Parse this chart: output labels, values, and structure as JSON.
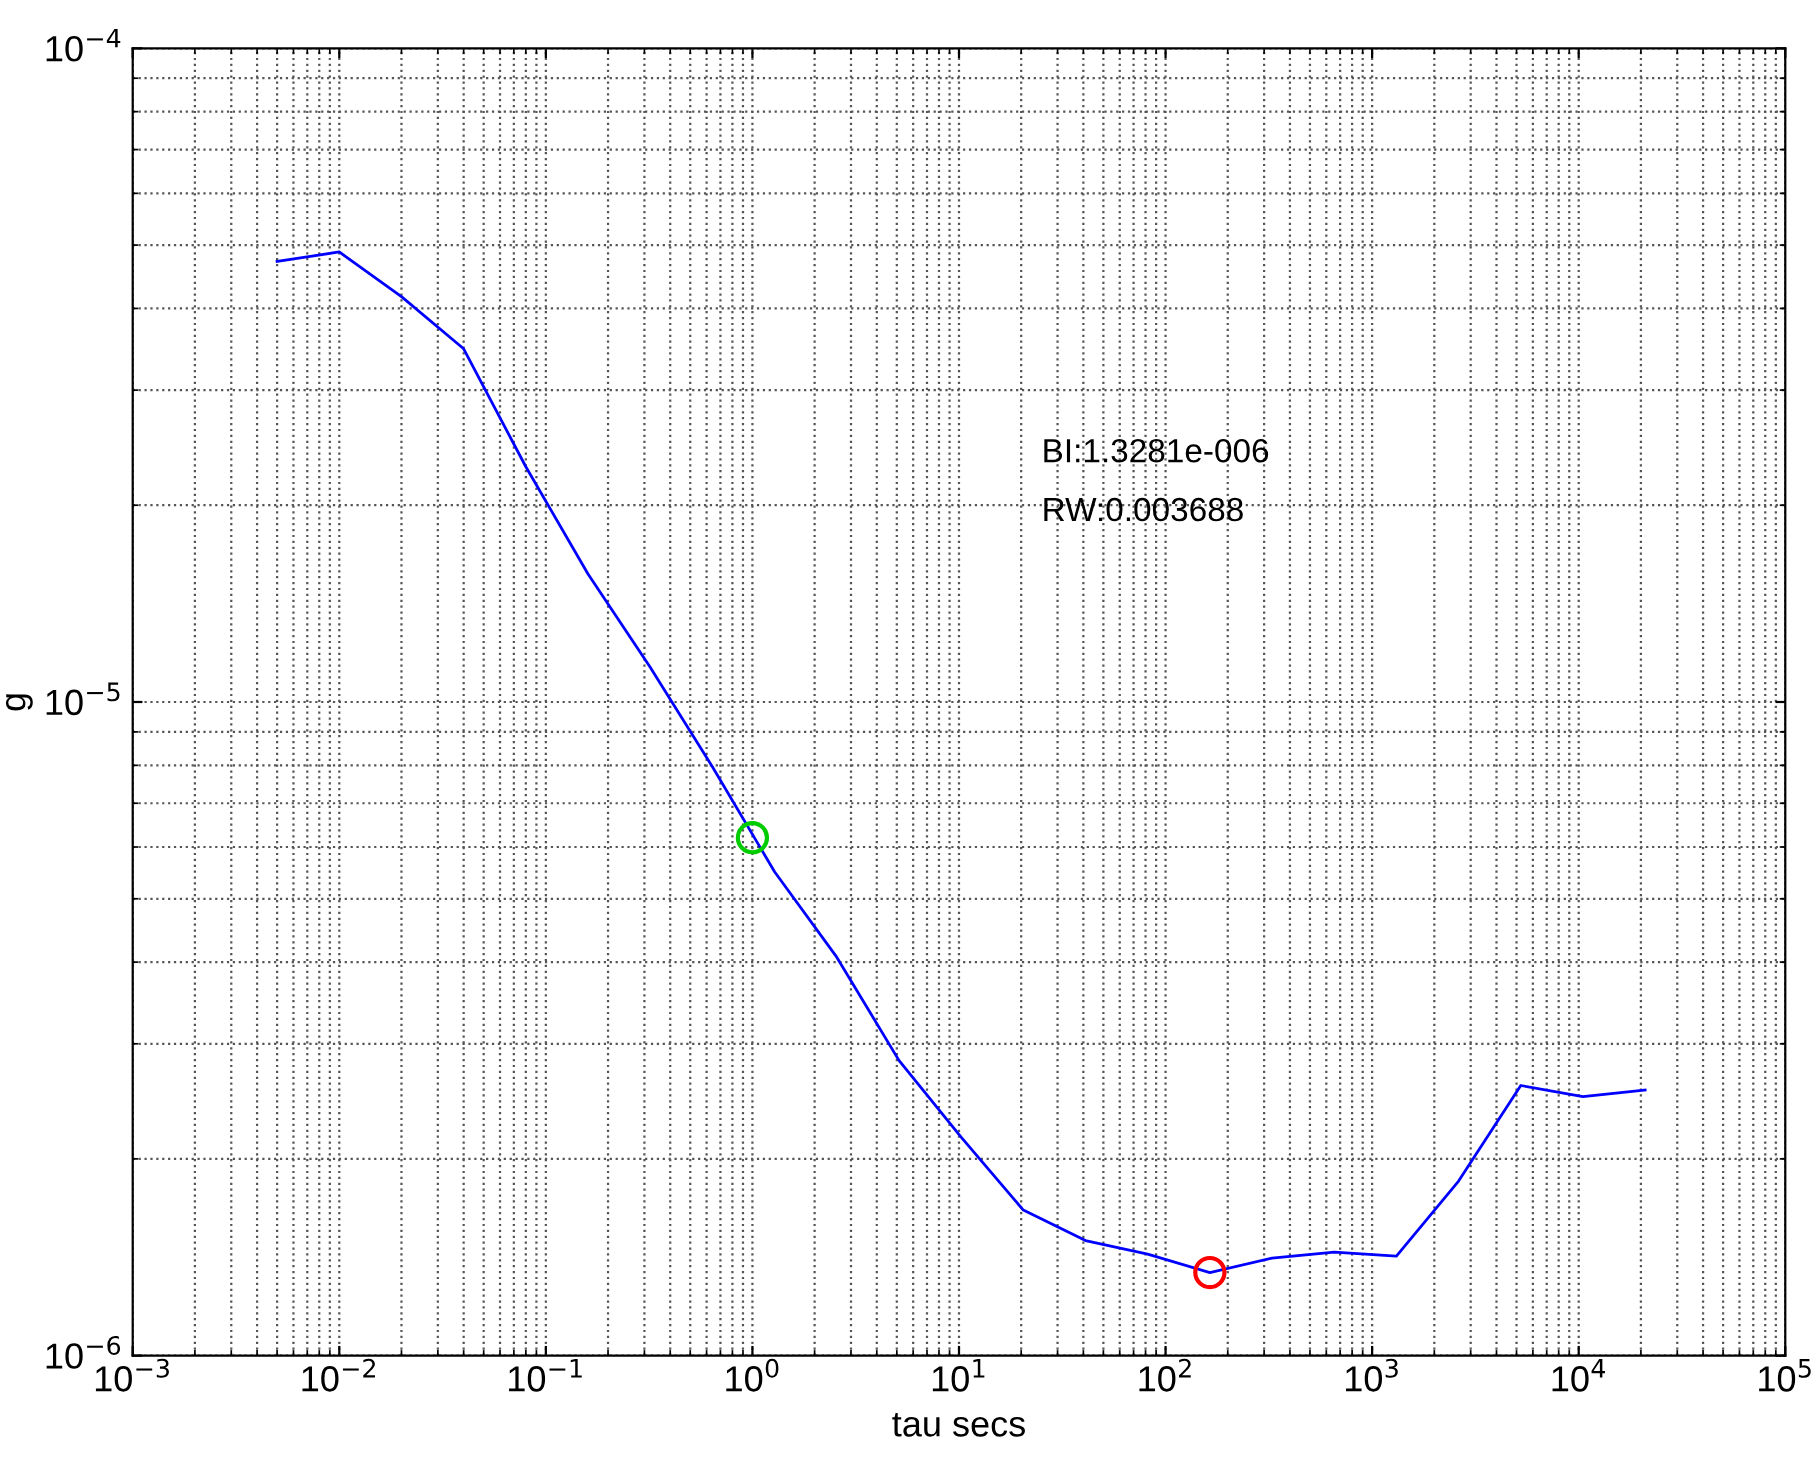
{
  "chart_data": {
    "type": "line",
    "xlabel": "tau secs",
    "ylabel": "g",
    "log": "xy",
    "grid": true,
    "legend": false,
    "xlim": [
      0.001,
      100000
    ],
    "ylim": [
      1e-06,
      0.0001
    ],
    "xticks": [
      {
        "value": 0.001,
        "label": "10$^{−3}$"
      },
      {
        "value": 0.01,
        "label": "10$^{−2}$"
      },
      {
        "value": 0.1,
        "label": "10$^{−1}$"
      },
      {
        "value": 1,
        "label": "10$^{0}$"
      },
      {
        "value": 10,
        "label": "10$^{1}$"
      },
      {
        "value": 100,
        "label": "10$^{2}$"
      },
      {
        "value": 1000,
        "label": "10$^{3}$"
      },
      {
        "value": 10000,
        "label": "10$^{4}$"
      },
      {
        "value": 100000,
        "label": "10$^{5}$"
      }
    ],
    "yticks": [
      {
        "value": 1e-06,
        "label": "10$^{−6}$"
      },
      {
        "value": 1e-05,
        "label": "10$^{−5}$"
      },
      {
        "value": 0.0001,
        "label": "10$^{−4}$"
      }
    ],
    "annotations": [
      "BI:1.3281e-006",
      "RW:0.003688"
    ],
    "series": [
      {
        "color": "#0000ff",
        "marker": "none",
        "line_style": "solid",
        "x": [
          0.005,
          0.01,
          0.02,
          0.04,
          0.08,
          0.16,
          0.32,
          0.64,
          1.28,
          2.56,
          5.12,
          10.24,
          20.48,
          40.96,
          81.92,
          163.84,
          327.68,
          655.36,
          1310.72,
          2621.44,
          5242.88,
          10485.76,
          20971.52
        ],
        "values": [
          4.72e-05,
          4.88e-05,
          4.17e-05,
          3.47e-05,
          2.29e-05,
          1.57e-05,
          1.13e-05,
          7.96e-06,
          5.5e-06,
          4.07e-06,
          2.83e-06,
          2.16e-06,
          1.67e-06,
          1.5e-06,
          1.43e-06,
          1.34e-06,
          1.41e-06,
          1.44e-06,
          1.42e-06,
          1.85e-06,
          2.59e-06,
          2.49e-06,
          2.55e-06
        ]
      },
      {
        "type": "scatter",
        "color": "#00cc00",
        "marker": "circle",
        "x": [
          1
        ],
        "values": [
          6.2e-06
        ]
      },
      {
        "type": "scatter",
        "color": "#ff0000",
        "marker": "circle",
        "x": [
          163.84
        ],
        "values": [
          1.34e-06
        ]
      }
    ]
  }
}
